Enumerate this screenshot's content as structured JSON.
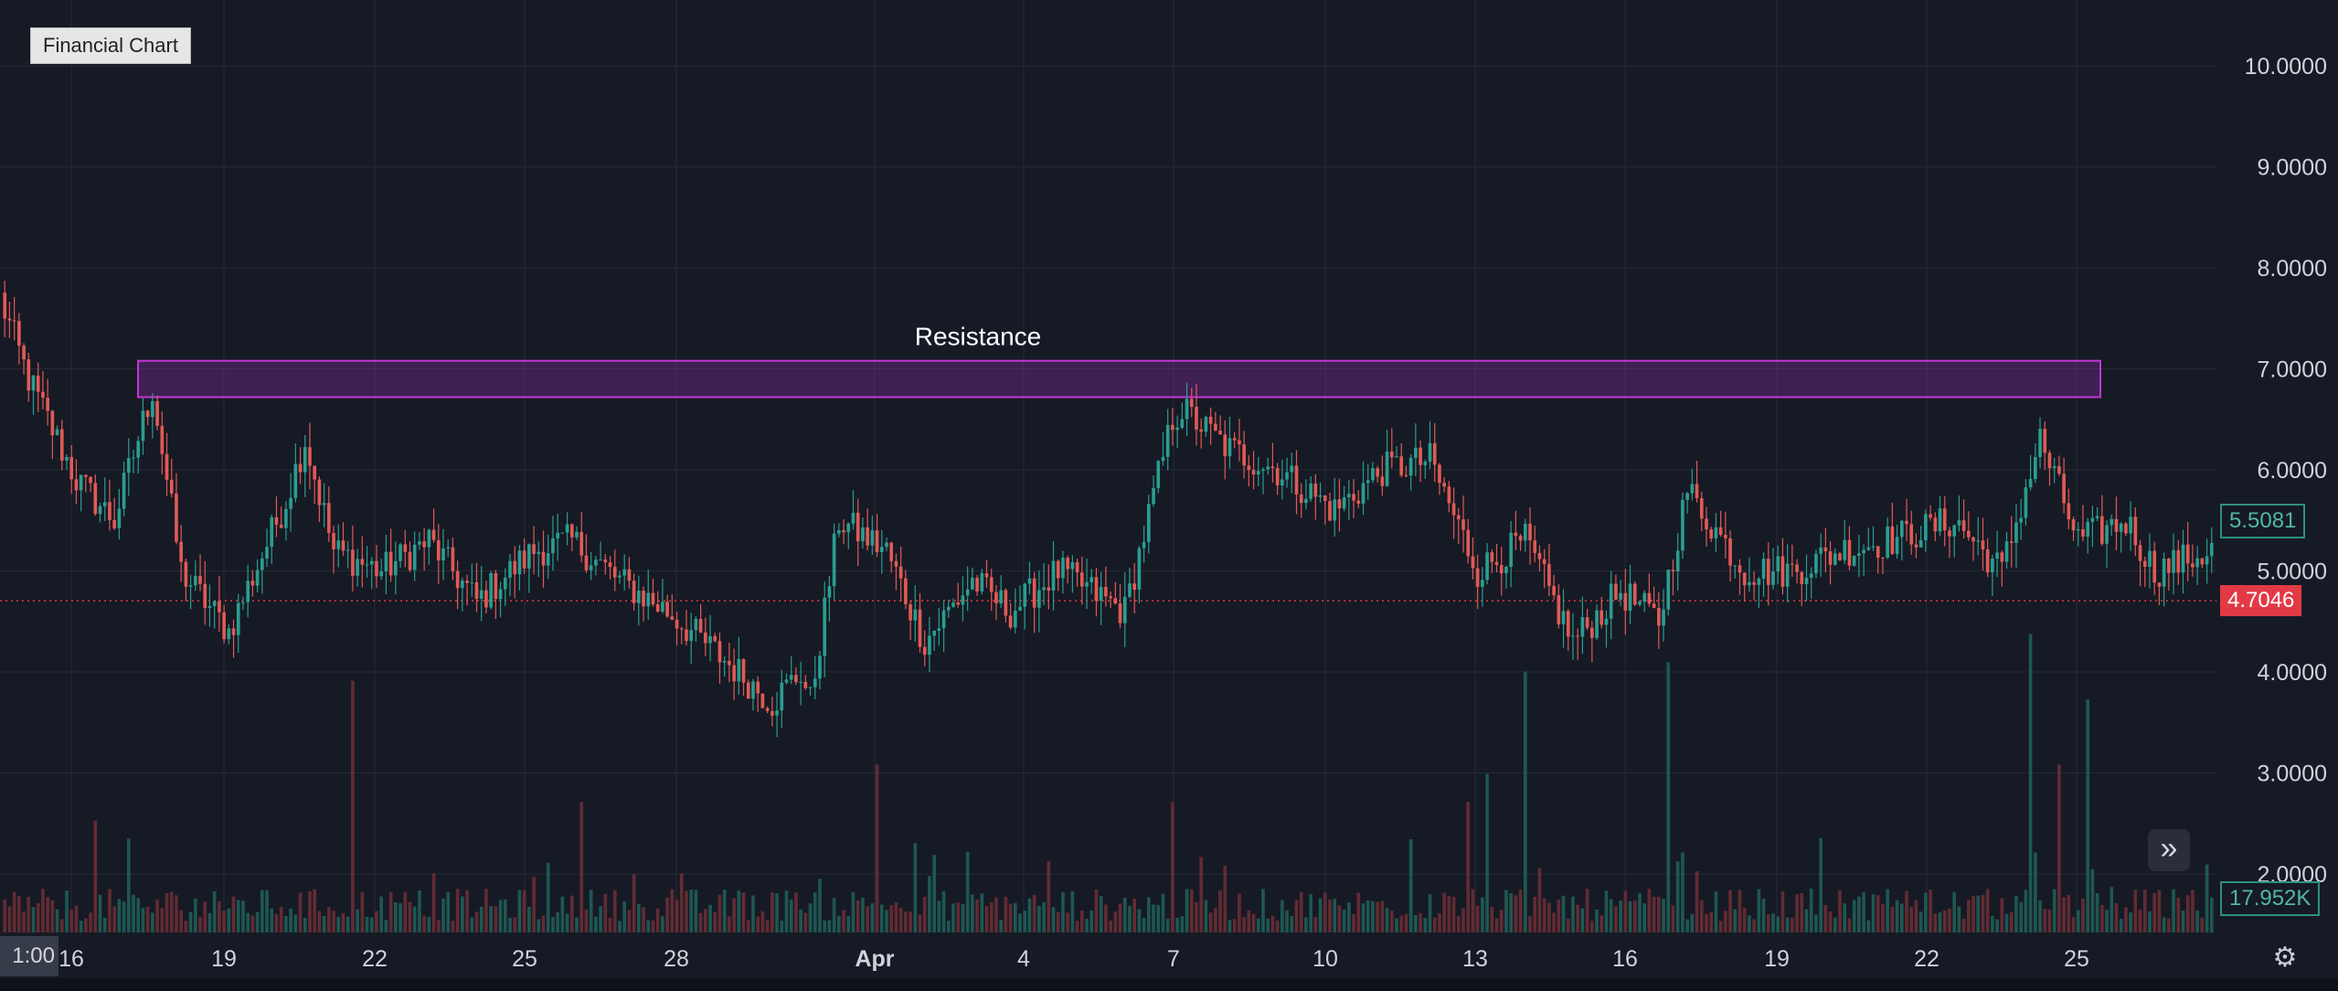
{
  "window": {
    "title": "Financial Chart"
  },
  "chart_data": {
    "type": "candlestick",
    "title": "Financial Chart",
    "price_axis": {
      "ticks": [
        "10.0000",
        "9.0000",
        "8.0000",
        "7.0000",
        "6.0000",
        "5.0000",
        "4.0000",
        "3.0000",
        "2.0000"
      ],
      "range": [
        1.55,
        10.45
      ]
    },
    "time_axis": {
      "corner_label": "1:00",
      "ticks": [
        "16",
        "19",
        "22",
        "25",
        "28",
        "Apr",
        "4",
        "7",
        "10",
        "13",
        "16",
        "19",
        "22",
        "25"
      ]
    },
    "annotation": {
      "label": "Resistance",
      "price_low": 6.72,
      "price_high": 7.08
    },
    "horizontal_line_price": 4.7046,
    "last_price": "5.5081",
    "marked_price": "4.7046",
    "volume_last": "17.952K",
    "anchor_points": [
      [
        0,
        7.7
      ],
      [
        3,
        6.9
      ],
      [
        8,
        5.9
      ],
      [
        12,
        5.5
      ],
      [
        16,
        6.8
      ],
      [
        19,
        5.0
      ],
      [
        24,
        4.4
      ],
      [
        30,
        5.7
      ],
      [
        32,
        6.3
      ],
      [
        35,
        5.2
      ],
      [
        40,
        5.0
      ],
      [
        45,
        5.3
      ],
      [
        50,
        4.7
      ],
      [
        56,
        5.2
      ],
      [
        60,
        5.3
      ],
      [
        65,
        4.9
      ],
      [
        70,
        4.6
      ],
      [
        75,
        4.2
      ],
      [
        81,
        3.7
      ],
      [
        84,
        4.0
      ],
      [
        85,
        3.7
      ],
      [
        88,
        5.5
      ],
      [
        93,
        5.2
      ],
      [
        97,
        4.3
      ],
      [
        102,
        4.9
      ],
      [
        106,
        4.6
      ],
      [
        111,
        5.0
      ],
      [
        118,
        4.6
      ],
      [
        123,
        6.5
      ],
      [
        124,
        6.6
      ],
      [
        129,
        6.2
      ],
      [
        134,
        6.0
      ],
      [
        140,
        5.6
      ],
      [
        145,
        6.0
      ],
      [
        150,
        6.1
      ],
      [
        155,
        5.0
      ],
      [
        160,
        5.3
      ],
      [
        165,
        4.3
      ],
      [
        170,
        4.8
      ],
      [
        174,
        4.5
      ],
      [
        177,
        5.8
      ],
      [
        183,
        5.0
      ],
      [
        188,
        5.0
      ],
      [
        193,
        5.2
      ],
      [
        198,
        5.3
      ],
      [
        205,
        5.5
      ],
      [
        210,
        5.0
      ],
      [
        214,
        6.3
      ],
      [
        218,
        5.3
      ],
      [
        223,
        5.5
      ],
      [
        226,
        5.0
      ],
      [
        232,
        5.2
      ]
    ],
    "volume_spikes": [
      [
        10,
        1.2
      ],
      [
        37,
        2.7
      ],
      [
        61,
        1.4
      ],
      [
        92,
        1.8
      ],
      [
        123,
        1.4
      ],
      [
        148,
        1.0
      ],
      [
        154,
        1.4
      ],
      [
        156,
        1.7
      ],
      [
        160,
        2.8
      ],
      [
        175,
        2.9
      ],
      [
        213,
        3.2
      ],
      [
        216,
        1.8
      ],
      [
        219,
        2.5
      ]
    ]
  },
  "colors": {
    "background": "#161a25",
    "grid": "#252a37",
    "up": "#2a9d8f",
    "down": "#e05a55",
    "zone_fill": "#8e2ca8",
    "zone_border": "#c236d6",
    "price_line": "#e23a45",
    "axis_text": "#d0d3db"
  },
  "controls": {
    "scroll_icon": "double-chevron-right-icon",
    "settings_icon": "gear-icon"
  }
}
